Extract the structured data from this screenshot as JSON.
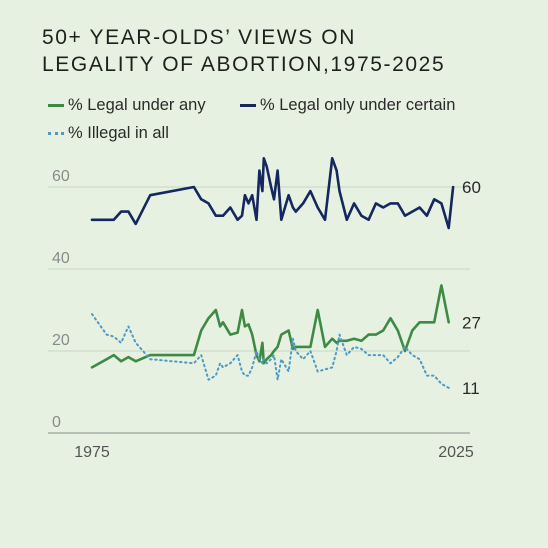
{
  "title_lines": [
    "50+ YEAR-OLDS’ VIEWS ON",
    "LEGALITY OF ABORTION,1975-2025"
  ],
  "colors": {
    "legal_any": "#3d8a45",
    "legal_certain": "#14275f",
    "illegal": "#4f9ac4",
    "grid": "#c9d6c3",
    "axis_text": "#8a8a8a",
    "baseline": "#9aa29a"
  },
  "chart_data": {
    "type": "line",
    "title": "50+ YEAR-OLDS’ VIEWS ON LEGALITY OF ABORTION,1975-2025",
    "xlabel": "",
    "ylabel": "",
    "xlim": [
      1975,
      2025
    ],
    "ylim": [
      0,
      65
    ],
    "yticks": [
      0,
      20,
      40,
      60
    ],
    "xticks": [
      1975,
      2025
    ],
    "grid": true,
    "legend_position": "top",
    "series": [
      {
        "name": "% Legal under any",
        "color": "#3d8a45",
        "style": "solid",
        "end_label": "27",
        "points": [
          [
            1975,
            16
          ],
          [
            1977,
            18
          ],
          [
            1978,
            19
          ],
          [
            1979,
            17.5
          ],
          [
            1980,
            18.5
          ],
          [
            1981,
            17.5
          ],
          [
            1983,
            19
          ],
          [
            1989,
            19
          ],
          [
            1990,
            25
          ],
          [
            1991,
            28
          ],
          [
            1992,
            30
          ],
          [
            1992.6,
            26
          ],
          [
            1993,
            27
          ],
          [
            1994,
            24
          ],
          [
            1995,
            24.5
          ],
          [
            1995.6,
            30
          ],
          [
            1996,
            26
          ],
          [
            1996.5,
            26.5
          ],
          [
            1997,
            24
          ],
          [
            1997.6,
            19
          ],
          [
            1998,
            17.5
          ],
          [
            1998.4,
            22
          ],
          [
            1998.6,
            17
          ],
          [
            1999,
            18
          ],
          [
            1999.6,
            19
          ],
          [
            2000,
            20
          ],
          [
            2000.5,
            21
          ],
          [
            2001,
            24
          ],
          [
            2002,
            25
          ],
          [
            2002.6,
            20.5
          ],
          [
            2003,
            21
          ],
          [
            2004,
            21
          ],
          [
            2005,
            21
          ],
          [
            2006,
            30
          ],
          [
            2007,
            21
          ],
          [
            2008,
            23
          ],
          [
            2008.6,
            22
          ],
          [
            2009,
            22.5
          ],
          [
            2010,
            22.5
          ],
          [
            2011,
            23
          ],
          [
            2012,
            22.5
          ],
          [
            2013,
            24
          ],
          [
            2014,
            24
          ],
          [
            2015,
            25
          ],
          [
            2016,
            28
          ],
          [
            2017,
            25
          ],
          [
            2018,
            20
          ],
          [
            2019,
            25
          ],
          [
            2020,
            27
          ],
          [
            2021,
            27
          ],
          [
            2022,
            27
          ],
          [
            2023,
            36
          ],
          [
            2024,
            27
          ]
        ]
      },
      {
        "name": "% Legal only under certain",
        "color": "#14275f",
        "style": "solid",
        "end_label": "60",
        "points": [
          [
            1975,
            52
          ],
          [
            1977,
            52
          ],
          [
            1978,
            52
          ],
          [
            1979,
            54
          ],
          [
            1980,
            54
          ],
          [
            1981,
            51
          ],
          [
            1983,
            58
          ],
          [
            1989,
            60
          ],
          [
            1990,
            57
          ],
          [
            1991,
            56
          ],
          [
            1992,
            53
          ],
          [
            1992.6,
            53
          ],
          [
            1993,
            53
          ],
          [
            1994,
            55
          ],
          [
            1995,
            52
          ],
          [
            1995.6,
            53
          ],
          [
            1996,
            58
          ],
          [
            1996.5,
            56
          ],
          [
            1997,
            58
          ],
          [
            1997.6,
            52
          ],
          [
            1998,
            64
          ],
          [
            1998.4,
            59
          ],
          [
            1998.6,
            67
          ],
          [
            1999,
            65
          ],
          [
            1999.6,
            60
          ],
          [
            2000,
            57
          ],
          [
            2000.5,
            64
          ],
          [
            2001,
            52
          ],
          [
            2002,
            58
          ],
          [
            2002.6,
            55
          ],
          [
            2003,
            54
          ],
          [
            2004,
            56
          ],
          [
            2005,
            59
          ],
          [
            2006,
            55
          ],
          [
            2007,
            52
          ],
          [
            2008,
            67
          ],
          [
            2008.6,
            64
          ],
          [
            2009,
            59
          ],
          [
            2010,
            52
          ],
          [
            2011,
            56
          ],
          [
            2012,
            53
          ],
          [
            2013,
            52
          ],
          [
            2014,
            56
          ],
          [
            2015,
            55
          ],
          [
            2016,
            56
          ],
          [
            2017,
            56
          ],
          [
            2018,
            53
          ],
          [
            2019,
            54
          ],
          [
            2020,
            55
          ],
          [
            2021,
            53
          ],
          [
            2022,
            57
          ],
          [
            2023,
            56
          ],
          [
            2024,
            50
          ],
          [
            2024.6,
            60
          ]
        ]
      },
      {
        "name": "% Illegal in all",
        "color": "#4f9ac4",
        "style": "dotted",
        "end_label": "11",
        "points": [
          [
            1975,
            29
          ],
          [
            1977,
            24
          ],
          [
            1978,
            23.5
          ],
          [
            1979,
            22
          ],
          [
            1980,
            26
          ],
          [
            1981,
            22
          ],
          [
            1983,
            18
          ],
          [
            1989,
            17
          ],
          [
            1990,
            19
          ],
          [
            1991,
            13
          ],
          [
            1992,
            14
          ],
          [
            1992.6,
            17
          ],
          [
            1993,
            16
          ],
          [
            1994,
            17
          ],
          [
            1995,
            19
          ],
          [
            1995.6,
            15
          ],
          [
            1996,
            14
          ],
          [
            1996.5,
            14
          ],
          [
            1997,
            16
          ],
          [
            1997.6,
            20
          ],
          [
            1998,
            18
          ],
          [
            1998.4,
            17
          ],
          [
            1998.6,
            18
          ],
          [
            1999,
            17
          ],
          [
            1999.6,
            18
          ],
          [
            2000,
            19
          ],
          [
            2000.5,
            13
          ],
          [
            2001,
            18
          ],
          [
            2002,
            15
          ],
          [
            2002.6,
            23
          ],
          [
            2003,
            20
          ],
          [
            2004,
            18
          ],
          [
            2005,
            20
          ],
          [
            2006,
            15
          ],
          [
            2007,
            15.5
          ],
          [
            2008,
            16
          ],
          [
            2008.6,
            20
          ],
          [
            2009,
            24
          ],
          [
            2010,
            19
          ],
          [
            2011,
            21
          ],
          [
            2012,
            20.5
          ],
          [
            2013,
            19
          ],
          [
            2014,
            19
          ],
          [
            2015,
            19
          ],
          [
            2016,
            17
          ],
          [
            2017,
            18.5
          ],
          [
            2018,
            21
          ],
          [
            2019,
            19
          ],
          [
            2020,
            18
          ],
          [
            2021,
            14
          ],
          [
            2022,
            14
          ],
          [
            2023,
            12
          ],
          [
            2024,
            11
          ]
        ]
      }
    ]
  }
}
